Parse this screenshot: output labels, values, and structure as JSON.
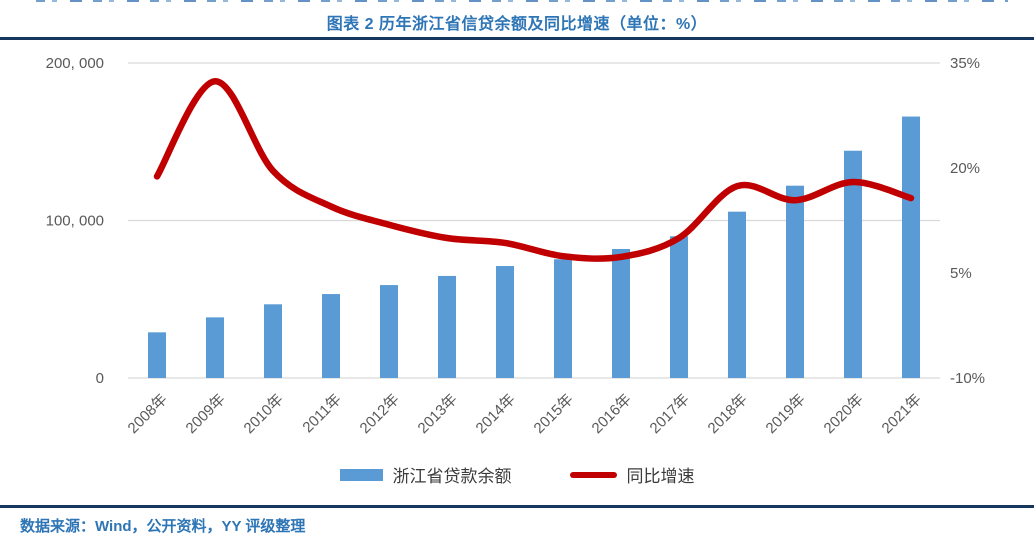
{
  "header": {
    "title": "图表 2 历年浙江省信贷余额及同比增速（单位：%）"
  },
  "footer": {
    "source": "数据来源：Wind，公开资料，YY 评级整理"
  },
  "colors": {
    "bar": "#5B9BD5",
    "line": "#C00000",
    "title_text": "#2E75B6",
    "rule": "#17365D",
    "axis_text": "#595959",
    "gridline": "#D9D9D9"
  },
  "chart_data": {
    "type": "combo",
    "title": "图表 2 历年浙江省信贷余额及同比增速（单位：%）",
    "categories": [
      "2008年",
      "2009年",
      "2010年",
      "2011年",
      "2012年",
      "2013年",
      "2014年",
      "2015年",
      "2016年",
      "2017年",
      "2018年",
      "2019年",
      "2020年",
      "2021年"
    ],
    "series": [
      {
        "name": "浙江省贷款余额",
        "type": "bar",
        "axis": "left",
        "color": "#5B9BD5",
        "values": [
          29000,
          38500,
          46800,
          53300,
          59000,
          64800,
          71100,
          75400,
          81900,
          90000,
          105600,
          122100,
          144300,
          166000
        ]
      },
      {
        "name": "同比增速",
        "type": "line",
        "axis": "right",
        "color": "#C00000",
        "values": [
          18.8,
          32.4,
          19.6,
          14.5,
          11.9,
          10.0,
          9.3,
          7.4,
          7.3,
          10.0,
          17.4,
          15.4,
          18.0,
          15.7
        ]
      }
    ],
    "left_axis": {
      "min": 0,
      "max": 200000,
      "ticks": [
        {
          "v": 200000,
          "label": "200, 000"
        },
        {
          "v": 100000,
          "label": "100, 000"
        },
        {
          "v": 0,
          "label": "0"
        }
      ]
    },
    "right_axis": {
      "min": -10,
      "max": 35,
      "ticks": [
        {
          "v": 35,
          "label": "35%"
        },
        {
          "v": 20,
          "label": "20%"
        },
        {
          "v": 5,
          "label": "5%"
        },
        {
          "v": -10,
          "label": "-10%"
        }
      ]
    },
    "grid": "horizontal",
    "legend_position": "bottom"
  }
}
